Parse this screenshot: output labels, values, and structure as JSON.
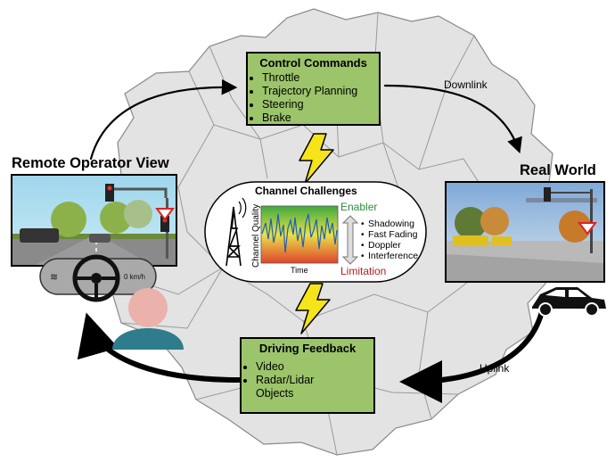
{
  "control_commands": {
    "title": "Control Commands",
    "items": [
      "Throttle",
      "Trajectory Planning",
      "Steering",
      "Brake"
    ]
  },
  "driving_feedback": {
    "title": "Driving Feedback",
    "items": [
      "Video",
      "Radar/Lidar",
      "Objects"
    ]
  },
  "labels": {
    "remote_operator": "Remote Operator View",
    "real_world": "Real World",
    "downlink": "Downlink",
    "uplink": "Uplink"
  },
  "channel": {
    "title": "Channel Challenges",
    "y_axis": "Channel Quality",
    "x_axis": "Time",
    "enabler": "Enabler",
    "limitation": "Limitation",
    "challenges": [
      "Shadowing",
      "Fast Fading",
      "Doppler",
      "Interference"
    ]
  },
  "dashboard": {
    "speed": "0 km/h"
  },
  "colors": {
    "box_fill": "#9cc46a",
    "map_fill": "#e4e4e4",
    "enabler_green": "#2e8b3a",
    "limitation_red": "#b02020",
    "lightning": "#f5e41a",
    "operator_head": "#eab2ab",
    "operator_body": "#2f7c8c"
  }
}
